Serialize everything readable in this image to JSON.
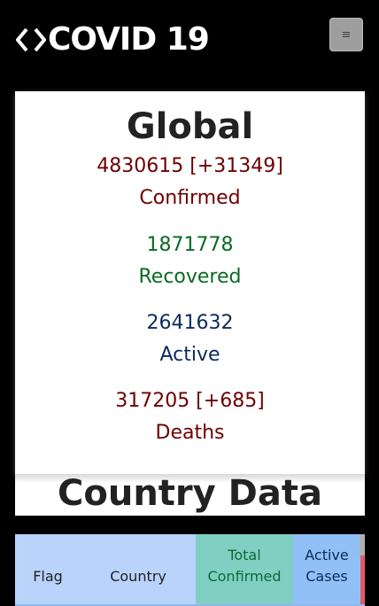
{
  "navbar": {
    "brand": "COVID 19",
    "brand_icon": "diamond-outline-icon",
    "toggler_icon": "hamburger-menu-icon",
    "toggler_symbol": "≡"
  },
  "global": {
    "title": "Global",
    "confirmed": {
      "value": "4830615 [+31349]",
      "label": "Confirmed"
    },
    "recovered": {
      "value": "1871778",
      "label": "Recovered"
    },
    "active": {
      "value": "2641632",
      "label": "Active"
    },
    "deaths": {
      "value": "317205 [+685]",
      "label": "Deaths"
    }
  },
  "country_section": {
    "title": "Country Data"
  },
  "table": {
    "headers": {
      "flag": "Flag",
      "country": "Country",
      "total_line1": "Total",
      "total_line2": "Confirmed",
      "active_line1": "Active",
      "active_line2": "Cases"
    }
  },
  "colors": {
    "confirmed": "#6e0000",
    "recovered": "#0a6a23",
    "active": "#0c2a5e",
    "deaths": "#6e0000"
  }
}
